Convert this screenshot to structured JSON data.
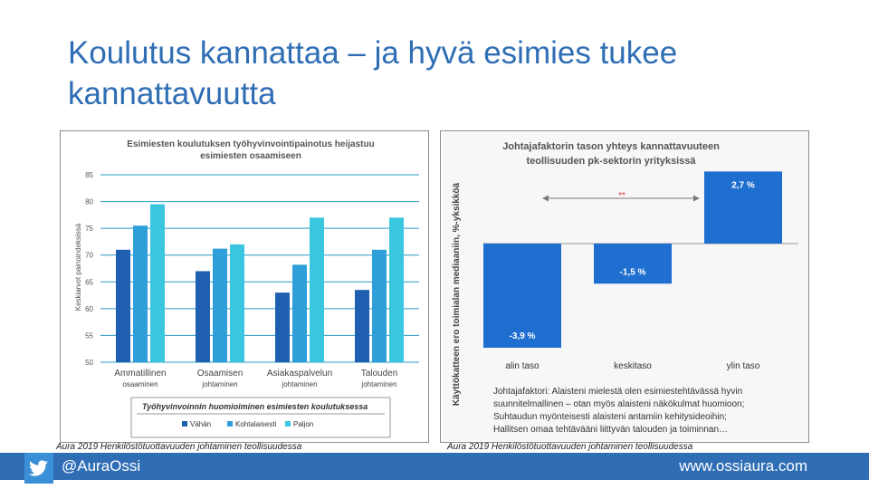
{
  "slide": {
    "title": "Koulutus kannattaa – ja hyvä esimies tukee kannattavuutta",
    "footer_handle": "@AuraOssi",
    "footer_url": "www.ossiaura.com",
    "icon": "twitter-bird-icon",
    "accent_color": "#2f6eb5"
  },
  "chart_data": [
    {
      "type": "bar",
      "title": "Esimiesten koulutuksen työhyvinvointipainotus heijastuu esimiesten osaamiseen",
      "title_lines": [
        "Esimiesten koulutuksen työhyvinvointipainotus heijastuu",
        "esimiesten osaamiseen"
      ],
      "ylabel": "Keskiarvot painoindeksissä",
      "ylim": [
        50,
        85
      ],
      "yticks": [
        50,
        55,
        60,
        65,
        70,
        75,
        80,
        85
      ],
      "categories": [
        [
          "Ammatillinen",
          "osaaminen"
        ],
        [
          "Osaamisen",
          "johtaminen"
        ],
        [
          "Asiakaspalvelun",
          "johtaminen"
        ],
        [
          "Talouden",
          "johtaminen"
        ]
      ],
      "legend_title": "Työhyvinvoinnin huomioiminen esimiesten koulutuksessa",
      "legend_position": "bottom",
      "grid": true,
      "series": [
        {
          "name": "Vähän",
          "color": "#1f5fb0",
          "values": [
            71,
            67,
            63,
            63.5
          ]
        },
        {
          "name": "Kohtalaisesti",
          "color": "#2e9fd8",
          "values": [
            75.5,
            71.2,
            68.2,
            71
          ]
        },
        {
          "name": "Paljon",
          "color": "#39c6de",
          "values": [
            79.5,
            72,
            77,
            77
          ]
        }
      ],
      "source": "Aura 2019 Henkilöstötuottavuuden johtaminen teollisuudessa"
    },
    {
      "type": "bar",
      "title": "Johtajafaktorin tason yhteys kannattavuuteen teollisuuden pk-sektorin yrityksissä",
      "title_lines": [
        "Johtajafaktorin tason yhteys kannattavuuteen",
        "teollisuuden pk-sektorin yrityksissä"
      ],
      "ylabel": "Käyttökatteen ero toimialan mediaaniin, %-yksikköä",
      "categories": [
        "alin taso",
        "keskitaso",
        "ylin taso"
      ],
      "values": [
        -3.9,
        -1.5,
        2.7
      ],
      "data_labels": [
        "-3,9 %",
        "-1,5 %",
        "2,7 %"
      ],
      "color": "#1f6fd1",
      "significance": "**",
      "notes": [
        "Johtajafaktori: Alaisteni mielestä olen esimiestehtävässä hyvin",
        "suunnitelmallinen – otan myös alaisteni näkökulmat huomioon;",
        "Suhtaudun myönteisesti alaisteni antamiin kehitysideoihin;",
        "Hallitsen omaa tehtävääni liittyvän talouden ja toiminnan…"
      ],
      "source": "Aura 2019 Henkilöstötuottavuuden johtaminen teollisuudessa"
    }
  ]
}
